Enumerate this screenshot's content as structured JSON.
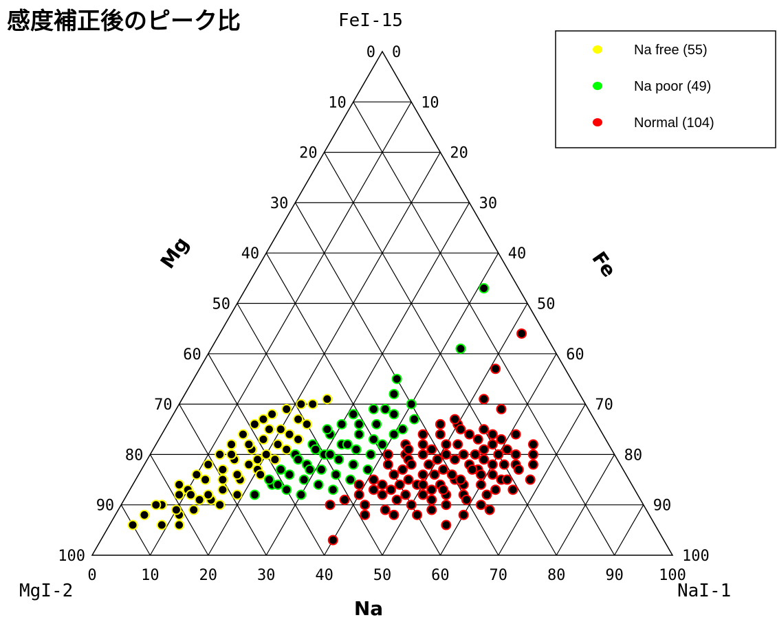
{
  "chart_data": {
    "type": "scatter",
    "plot_kind": "ternary",
    "title": "感度補正後のピーク比",
    "apex_labels": {
      "top": "FeI-15",
      "left": "MgI-2",
      "right": "NaI-1"
    },
    "axis_labels": {
      "mg": "Mg",
      "fe": "Fe",
      "na": "Na"
    },
    "ticks": {
      "bottom": [
        "0",
        "10",
        "20",
        "30",
        "40",
        "50",
        "60",
        "70",
        "80",
        "90",
        "100"
      ],
      "left": [
        "100",
        "90",
        "80",
        "70",
        "60",
        "50",
        "40",
        "30",
        "20",
        "10",
        "0"
      ],
      "right": [
        "100",
        "90",
        "80",
        "70",
        "60",
        "50",
        "40",
        "30",
        "20",
        "10",
        "0"
      ]
    },
    "grid": true,
    "legend_position": "top-right",
    "series": [
      {
        "name": "Na free (55)",
        "color": "#ffff00",
        "points": [
          {
            "na": 4,
            "fe": 6
          },
          {
            "na": 5,
            "fe": 8
          },
          {
            "na": 7,
            "fe": 10
          },
          {
            "na": 9,
            "fe": 12
          },
          {
            "na": 8,
            "fe": 14
          },
          {
            "na": 10,
            "fe": 16
          },
          {
            "na": 11,
            "fe": 18
          },
          {
            "na": 12,
            "fe": 20
          },
          {
            "na": 13,
            "fe": 22
          },
          {
            "na": 14,
            "fe": 24
          },
          {
            "na": 15,
            "fe": 26
          },
          {
            "na": 16,
            "fe": 27
          },
          {
            "na": 17,
            "fe": 28
          },
          {
            "na": 19,
            "fe": 29
          },
          {
            "na": 21,
            "fe": 30
          },
          {
            "na": 23,
            "fe": 30
          },
          {
            "na": 25,
            "fe": 31
          },
          {
            "na": 6,
            "fe": 10
          },
          {
            "na": 10,
            "fe": 13
          },
          {
            "na": 12,
            "fe": 15
          },
          {
            "na": 14,
            "fe": 17
          },
          {
            "na": 15,
            "fe": 19
          },
          {
            "na": 17,
            "fe": 21
          },
          {
            "na": 18,
            "fe": 23
          },
          {
            "na": 16,
            "fe": 13
          },
          {
            "na": 18,
            "fe": 15
          },
          {
            "na": 20,
            "fe": 17
          },
          {
            "na": 11,
            "fe": 8
          },
          {
            "na": 13,
            "fe": 11
          },
          {
            "na": 19,
            "fe": 19
          },
          {
            "na": 21,
            "fe": 22
          },
          {
            "na": 22,
            "fe": 24
          },
          {
            "na": 16,
            "fe": 22
          },
          {
            "na": 14,
            "fe": 20
          },
          {
            "na": 9,
            "fe": 6
          },
          {
            "na": 12,
            "fe": 6
          },
          {
            "na": 13,
            "fe": 9
          },
          {
            "na": 15,
            "fe": 11
          },
          {
            "na": 17,
            "fe": 10
          },
          {
            "na": 19,
            "fe": 12
          },
          {
            "na": 20,
            "fe": 25
          },
          {
            "na": 22,
            "fe": 27
          },
          {
            "na": 24,
            "fe": 26
          },
          {
            "na": 23,
            "fe": 21
          },
          {
            "na": 18,
            "fe": 25
          },
          {
            "na": 20,
            "fe": 20
          },
          {
            "na": 15,
            "fe": 15
          },
          {
            "na": 14,
            "fe": 12
          },
          {
            "na": 18,
            "fe": 18
          },
          {
            "na": 21,
            "fe": 16
          },
          {
            "na": 22,
            "fe": 19
          },
          {
            "na": 17,
            "fe": 16
          },
          {
            "na": 11,
            "fe": 12
          },
          {
            "na": 10,
            "fe": 9
          },
          {
            "na": 24,
            "fe": 23
          }
        ]
      },
      {
        "name": "Na poor (49)",
        "color": "#00ff00",
        "points": [
          {
            "na": 41,
            "fe": 53
          },
          {
            "na": 43,
            "fe": 41
          },
          {
            "na": 35,
            "fe": 35
          },
          {
            "na": 36,
            "fe": 32
          },
          {
            "na": 22,
            "fe": 12
          },
          {
            "na": 24,
            "fe": 14
          },
          {
            "na": 26,
            "fe": 16
          },
          {
            "na": 28,
            "fe": 18
          },
          {
            "na": 30,
            "fe": 20
          },
          {
            "na": 32,
            "fe": 22
          },
          {
            "na": 34,
            "fe": 24
          },
          {
            "na": 36,
            "fe": 26
          },
          {
            "na": 38,
            "fe": 28
          },
          {
            "na": 40,
            "fe": 30
          },
          {
            "na": 27,
            "fe": 13
          },
          {
            "na": 29,
            "fe": 15
          },
          {
            "na": 31,
            "fe": 17
          },
          {
            "na": 33,
            "fe": 19
          },
          {
            "na": 35,
            "fe": 21
          },
          {
            "na": 37,
            "fe": 23
          },
          {
            "na": 30,
            "fe": 12
          },
          {
            "na": 32,
            "fe": 14
          },
          {
            "na": 34,
            "fe": 16
          },
          {
            "na": 36,
            "fe": 18
          },
          {
            "na": 33,
            "fe": 26
          },
          {
            "na": 31,
            "fe": 28
          },
          {
            "na": 25,
            "fe": 20
          },
          {
            "na": 27,
            "fe": 22
          },
          {
            "na": 29,
            "fe": 24
          },
          {
            "na": 26,
            "fe": 19
          },
          {
            "na": 28,
            "fe": 21
          },
          {
            "na": 35,
            "fe": 13
          },
          {
            "na": 37,
            "fe": 15
          },
          {
            "na": 39,
            "fe": 17
          },
          {
            "na": 24,
            "fe": 17
          },
          {
            "na": 23,
            "fe": 15
          },
          {
            "na": 31,
            "fe": 20
          },
          {
            "na": 33,
            "fe": 22
          },
          {
            "na": 38,
            "fe": 20
          },
          {
            "na": 39,
            "fe": 22
          },
          {
            "na": 41,
            "fe": 25
          },
          {
            "na": 42,
            "fe": 27
          },
          {
            "na": 30,
            "fe": 26
          },
          {
            "na": 28,
            "fe": 25
          },
          {
            "na": 34,
            "fe": 29
          },
          {
            "na": 36,
            "fe": 29
          },
          {
            "na": 40,
            "fe": 24
          },
          {
            "na": 25,
            "fe": 14
          },
          {
            "na": 29,
            "fe": 17
          }
        ]
      },
      {
        "name": "Normal (104)",
        "color": "#ff0000",
        "points": [
          {
            "na": 52,
            "fe": 44
          },
          {
            "na": 51,
            "fe": 37
          },
          {
            "na": 52,
            "fe": 31
          },
          {
            "na": 56,
            "fe": 29
          },
          {
            "na": 40,
            "fe": 3
          },
          {
            "na": 42,
            "fe": 18
          },
          {
            "na": 44,
            "fe": 20
          },
          {
            "na": 46,
            "fe": 22
          },
          {
            "na": 48,
            "fe": 24
          },
          {
            "na": 50,
            "fe": 26
          },
          {
            "na": 52,
            "fe": 22
          },
          {
            "na": 54,
            "fe": 20
          },
          {
            "na": 56,
            "fe": 18
          },
          {
            "na": 58,
            "fe": 17
          },
          {
            "na": 60,
            "fe": 20
          },
          {
            "na": 62,
            "fe": 18
          },
          {
            "na": 64,
            "fe": 18
          },
          {
            "na": 63,
            "fe": 15
          },
          {
            "na": 60,
            "fe": 14
          },
          {
            "na": 58,
            "fe": 12
          },
          {
            "na": 56,
            "fe": 10
          },
          {
            "na": 54,
            "fe": 9
          },
          {
            "na": 52,
            "fe": 8
          },
          {
            "na": 50,
            "fe": 10
          },
          {
            "na": 48,
            "fe": 12
          },
          {
            "na": 46,
            "fe": 14
          },
          {
            "na": 44,
            "fe": 16
          },
          {
            "na": 43,
            "fe": 22
          },
          {
            "na": 45,
            "fe": 24
          },
          {
            "na": 47,
            "fe": 26
          },
          {
            "na": 49,
            "fe": 27
          },
          {
            "na": 51,
            "fe": 25
          },
          {
            "na": 53,
            "fe": 24
          },
          {
            "na": 55,
            "fe": 23
          },
          {
            "na": 57,
            "fe": 21
          },
          {
            "na": 59,
            "fe": 23
          },
          {
            "na": 61,
            "fe": 16
          },
          {
            "na": 62,
            "fe": 12
          },
          {
            "na": 64,
            "fe": 9
          },
          {
            "na": 60,
            "fe": 8
          },
          {
            "na": 58,
            "fe": 6
          },
          {
            "na": 55,
            "fe": 12
          },
          {
            "na": 53,
            "fe": 14
          },
          {
            "na": 51,
            "fe": 16
          },
          {
            "na": 49,
            "fe": 18
          },
          {
            "na": 47,
            "fe": 20
          },
          {
            "na": 45,
            "fe": 17
          },
          {
            "na": 47,
            "fe": 15
          },
          {
            "na": 49,
            "fe": 14
          },
          {
            "na": 51,
            "fe": 12
          },
          {
            "na": 53,
            "fe": 11
          },
          {
            "na": 55,
            "fe": 15
          },
          {
            "na": 57,
            "fe": 14
          },
          {
            "na": 59,
            "fe": 16
          },
          {
            "na": 61,
            "fe": 21
          },
          {
            "na": 63,
            "fe": 20
          },
          {
            "na": 65,
            "fe": 22
          },
          {
            "na": 67,
            "fe": 18
          },
          {
            "na": 68,
            "fe": 15
          },
          {
            "na": 66,
            "fe": 13
          },
          {
            "na": 44,
            "fe": 12
          },
          {
            "na": 42,
            "fe": 10
          },
          {
            "na": 40,
            "fe": 12
          },
          {
            "na": 38,
            "fe": 11
          },
          {
            "na": 36,
            "fe": 10
          },
          {
            "na": 46,
            "fe": 9
          },
          {
            "na": 48,
            "fe": 8
          },
          {
            "na": 43,
            "fe": 14
          },
          {
            "na": 41,
            "fe": 15
          },
          {
            "na": 45,
            "fe": 19
          },
          {
            "na": 48,
            "fe": 21
          },
          {
            "na": 50,
            "fe": 19
          },
          {
            "na": 52,
            "fe": 17
          },
          {
            "na": 54,
            "fe": 16
          },
          {
            "na": 56,
            "fe": 15
          },
          {
            "na": 58,
            "fe": 19
          },
          {
            "na": 60,
            "fe": 18
          },
          {
            "na": 57,
            "fe": 24
          },
          {
            "na": 55,
            "fe": 25
          },
          {
            "na": 50,
            "fe": 22
          },
          {
            "na": 46,
            "fe": 18
          },
          {
            "na": 44,
            "fe": 21
          },
          {
            "na": 42,
            "fe": 13
          },
          {
            "na": 49,
            "fe": 16
          },
          {
            "na": 53,
            "fe": 19
          },
          {
            "na": 62,
            "fe": 10
          },
          {
            "na": 59,
            "fe": 11
          },
          {
            "na": 65,
            "fe": 17
          },
          {
            "na": 57,
            "fe": 17
          },
          {
            "na": 51,
            "fe": 20
          },
          {
            "na": 47,
            "fe": 11
          },
          {
            "na": 45,
            "fe": 13
          },
          {
            "na": 43,
            "fe": 8
          },
          {
            "na": 54,
            "fe": 13
          },
          {
            "na": 56,
            "fe": 20
          },
          {
            "na": 58,
            "fe": 22
          },
          {
            "na": 61,
            "fe": 24
          },
          {
            "na": 63,
            "fe": 13
          },
          {
            "na": 41,
            "fe": 20
          },
          {
            "na": 39,
            "fe": 14
          },
          {
            "na": 66,
            "fe": 20
          },
          {
            "na": 64,
            "fe": 15
          },
          {
            "na": 50,
            "fe": 14
          },
          {
            "na": 52,
            "fe": 13
          }
        ]
      }
    ]
  }
}
